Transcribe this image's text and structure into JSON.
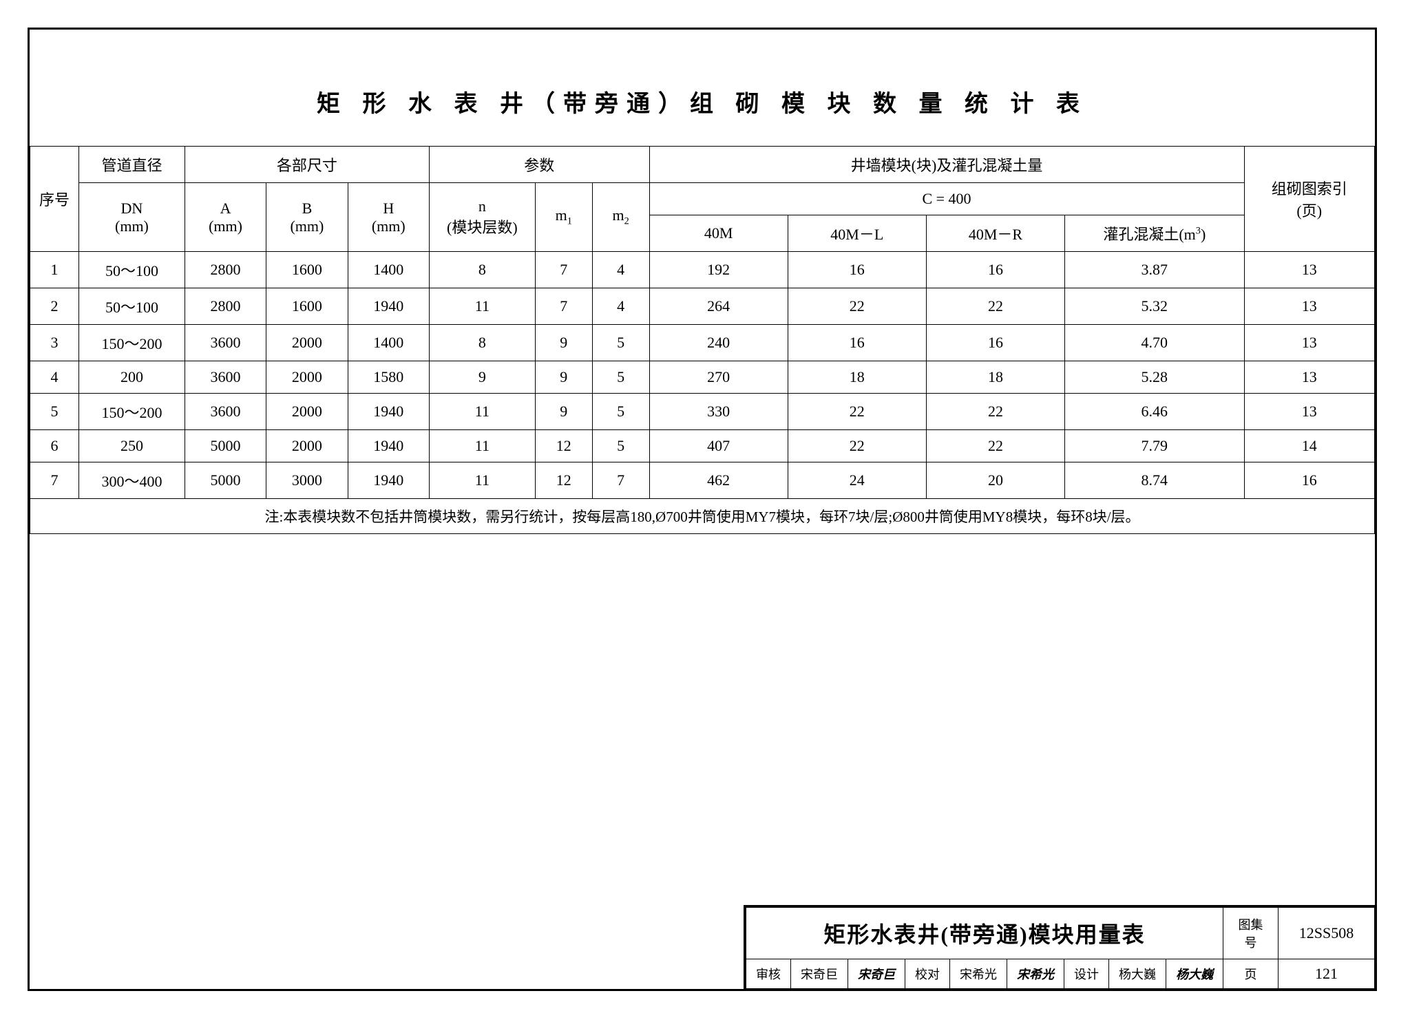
{
  "title": "矩 形 水 表 井（带旁通）组 砌 模 块 数 量 统 计 表",
  "table": {
    "header": {
      "seq": "序号",
      "pipe_dia_group": "管道直径",
      "pipe_dia_sub": "DN\n(mm)",
      "dims_group": "各部尺寸",
      "A": "A\n(mm)",
      "B": "B\n(mm)",
      "H": "H\n(mm)",
      "params_group": "参数",
      "n": "n\n(模块层数)",
      "m1": "m₁",
      "m2": "m₂",
      "wall_group": "井墙模块(块)及灌孔混凝土量",
      "c400": "C = 400",
      "c40M": "40M",
      "c40ML": "40M－L",
      "c40MR": "40M－R",
      "conc": "灌孔混凝土(m³)",
      "index_group": "组砌图索引\n(页)"
    },
    "rows": [
      {
        "seq": "1",
        "dn": "50～100",
        "A": "2800",
        "B": "1600",
        "H": "1400",
        "n": "8",
        "m1": "7",
        "m2": "4",
        "c40M": "192",
        "c40ML": "16",
        "c40MR": "16",
        "conc": "3.87",
        "idx": "13"
      },
      {
        "seq": "2",
        "dn": "50～100",
        "A": "2800",
        "B": "1600",
        "H": "1940",
        "n": "11",
        "m1": "7",
        "m2": "4",
        "c40M": "264",
        "c40ML": "22",
        "c40MR": "22",
        "conc": "5.32",
        "idx": "13"
      },
      {
        "seq": "3",
        "dn": "150～200",
        "A": "3600",
        "B": "2000",
        "H": "1400",
        "n": "8",
        "m1": "9",
        "m2": "5",
        "c40M": "240",
        "c40ML": "16",
        "c40MR": "16",
        "conc": "4.70",
        "idx": "13"
      },
      {
        "seq": "4",
        "dn": "200",
        "A": "3600",
        "B": "2000",
        "H": "1580",
        "n": "9",
        "m1": "9",
        "m2": "5",
        "c40M": "270",
        "c40ML": "18",
        "c40MR": "18",
        "conc": "5.28",
        "idx": "13"
      },
      {
        "seq": "5",
        "dn": "150～200",
        "A": "3600",
        "B": "2000",
        "H": "1940",
        "n": "11",
        "m1": "9",
        "m2": "5",
        "c40M": "330",
        "c40ML": "22",
        "c40MR": "22",
        "conc": "6.46",
        "idx": "13"
      },
      {
        "seq": "6",
        "dn": "250",
        "A": "5000",
        "B": "2000",
        "H": "1940",
        "n": "11",
        "m1": "12",
        "m2": "5",
        "c40M": "407",
        "c40ML": "22",
        "c40MR": "22",
        "conc": "7.79",
        "idx": "14"
      },
      {
        "seq": "7",
        "dn": "300～400",
        "A": "5000",
        "B": "3000",
        "H": "1940",
        "n": "11",
        "m1": "12",
        "m2": "7",
        "c40M": "462",
        "c40ML": "24",
        "c40MR": "20",
        "conc": "8.74",
        "idx": "16"
      }
    ],
    "note": "注:本表模块数不包括井筒模块数，需另行统计，按每层高180,Ø700井筒使用MY7模块，每环7块/层;Ø800井筒使用MY8模块，每环8块/层。"
  },
  "footer": {
    "drawing_title": "矩形水表井(带旁通)模块用量表",
    "set_label": "图集号",
    "set_value": "12SS508",
    "review_label": "审核",
    "review_name": "宋奇巨",
    "review_sig": "宋奇巨",
    "check_label": "校对",
    "check_name": "宋希光",
    "check_sig": "宋希光",
    "design_label": "设计",
    "design_name": "杨大巍",
    "design_sig": "杨大巍",
    "page_label": "页",
    "page_value": "121"
  },
  "style": {
    "border_color": "#000000",
    "bg": "#ffffff",
    "title_fontsize": 34,
    "body_fontsize": 22,
    "footer_title_fontsize": 32
  }
}
